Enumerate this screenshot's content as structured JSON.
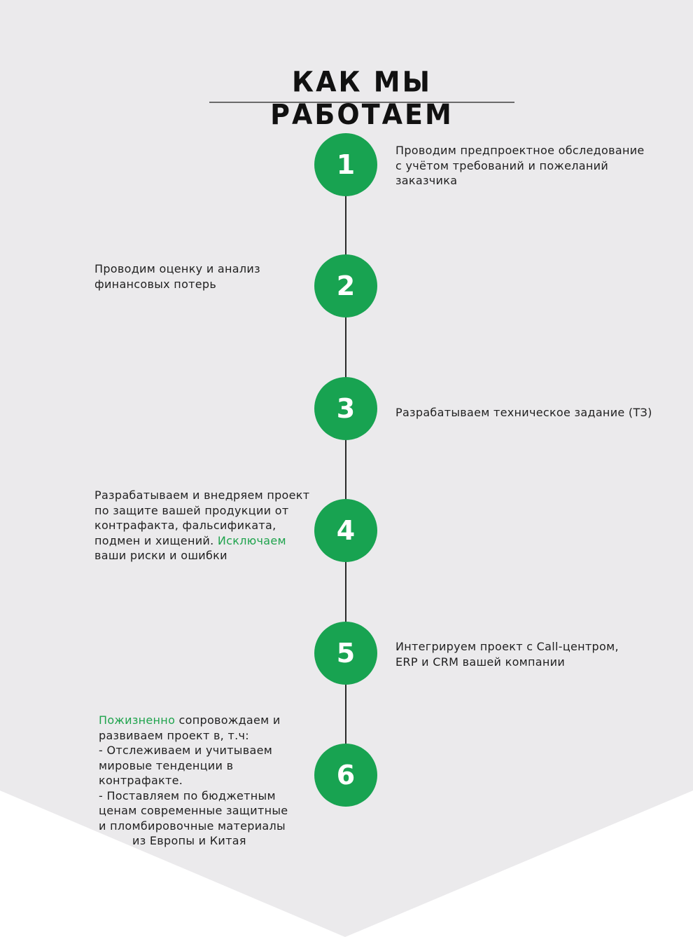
{
  "colors": {
    "background": "#ebeaec",
    "background_bottom": "#ffffff",
    "accent": "#18a351",
    "accent_text": "#1fa34d",
    "line": "#2a2a2a"
  },
  "title": "Как мы работаем",
  "steps": [
    {
      "number": "1",
      "lines": [
        "Проводим предпроектное обследование",
        "с учётом требований и пожеланий",
        "заказчика"
      ]
    },
    {
      "number": "2",
      "lines": [
        "Проводим оценку и анализ",
        "финансовых потерь"
      ]
    },
    {
      "number": "3",
      "lines": [
        "Разрабатываем техническое задание (ТЗ)"
      ]
    },
    {
      "number": "4",
      "line1": "Разрабатываем и внедряем проект",
      "line2": "по защите вашей продукции от",
      "line3": "контрафакта, фальсификата,",
      "line4_prefix": "подмен и хищений. ",
      "line4_accent": "Исключаем",
      "line5": "ваши риски и ошибки"
    },
    {
      "number": "5",
      "lines": [
        "Интегрируем проект с Call-центром,",
        "ERP и CRM вашей компании"
      ]
    },
    {
      "number": "6",
      "line1_accent": "Пожизненно",
      "line1_rest": " сопровождаем и",
      "lines": [
        "развиваем проект в, т.ч:",
        "- Отслеживаем и учитываем",
        "мировые тенденции в",
        "контрафакте.",
        "- Поставляем по бюджетным",
        "ценам современные защитные",
        "и пломбировочные материалы",
        "из Европы и Китая"
      ]
    }
  ]
}
